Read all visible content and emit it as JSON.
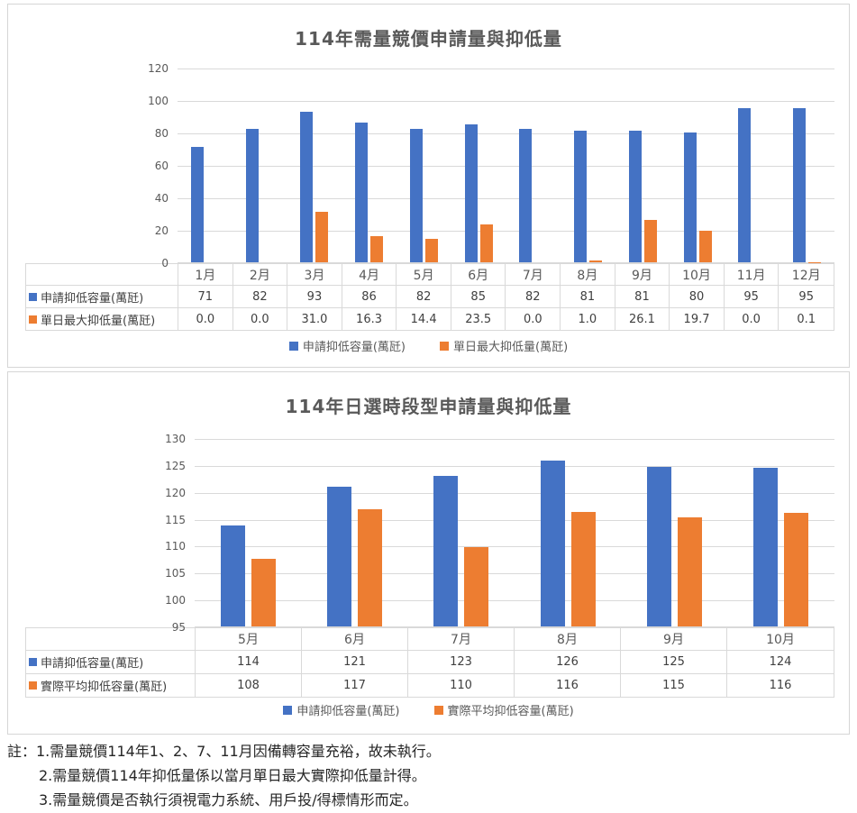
{
  "colors": {
    "series_blue": "#4472c4",
    "series_orange": "#ed7d31",
    "gridline": "#d9d9d9",
    "axis_text": "#595959",
    "value_text": "#404040",
    "title_text": "#595959",
    "panel_border": "#d6d6d6"
  },
  "chart_data": [
    {
      "type": "bar",
      "title": "114年需量競價申請量與抑低量",
      "categories": [
        "1月",
        "2月",
        "3月",
        "4月",
        "5月",
        "6月",
        "7月",
        "8月",
        "9月",
        "10月",
        "11月",
        "12月"
      ],
      "series": [
        {
          "name": "申請抑低容量(萬瓩)",
          "color": "#4472c4",
          "values": [
            71,
            82,
            93,
            86,
            82,
            85,
            82,
            81,
            81,
            80,
            95,
            95
          ],
          "table_values": [
            "71",
            "82",
            "93",
            "86",
            "82",
            "85",
            "82",
            "81",
            "81",
            "80",
            "95",
            "95"
          ]
        },
        {
          "name": "單日最大抑低量(萬瓩)",
          "color": "#ed7d31",
          "values": [
            0.0,
            0.0,
            31.0,
            16.3,
            14.4,
            23.5,
            0.0,
            1.0,
            26.1,
            19.7,
            0.0,
            0.1
          ],
          "table_values": [
            "0.0",
            "0.0",
            "31.0",
            "16.3",
            "14.4",
            "23.5",
            "0.0",
            "1.0",
            "26.1",
            "19.7",
            "0.0",
            "0.1"
          ]
        }
      ],
      "ylim": [
        0,
        120
      ],
      "ytick_step": 20,
      "grid": true,
      "data_table": true,
      "legend_position": "bottom"
    },
    {
      "type": "bar",
      "title": "114年日選時段型申請量與抑低量",
      "categories": [
        "5月",
        "6月",
        "7月",
        "8月",
        "9月",
        "10月"
      ],
      "series": [
        {
          "name": "申請抑低容量(萬瓩)",
          "color": "#4472c4",
          "values": [
            113.8,
            121.0,
            123.0,
            125.8,
            124.7,
            124.4
          ],
          "table_values": [
            "114",
            "121",
            "123",
            "126",
            "125",
            "124"
          ]
        },
        {
          "name": "實際平均抑低容量(萬瓩)",
          "color": "#ed7d31",
          "values": [
            107.6,
            116.8,
            109.8,
            116.3,
            115.2,
            116.1
          ],
          "table_values": [
            "108",
            "117",
            "110",
            "116",
            "115",
            "116"
          ]
        }
      ],
      "ylim": [
        95,
        130
      ],
      "ytick_step": 5,
      "grid": true,
      "data_table": true,
      "legend_position": "bottom"
    }
  ],
  "notes": {
    "lines": [
      "註：1.需量競價114年1、2、7、11月因備轉容量充裕，故未執行。",
      "2.需量競價114年抑低量係以當月單日最大實際抑低量計得。",
      "3.需量競價是否執行須視電力系統、用戶投/得標情形而定。"
    ]
  }
}
